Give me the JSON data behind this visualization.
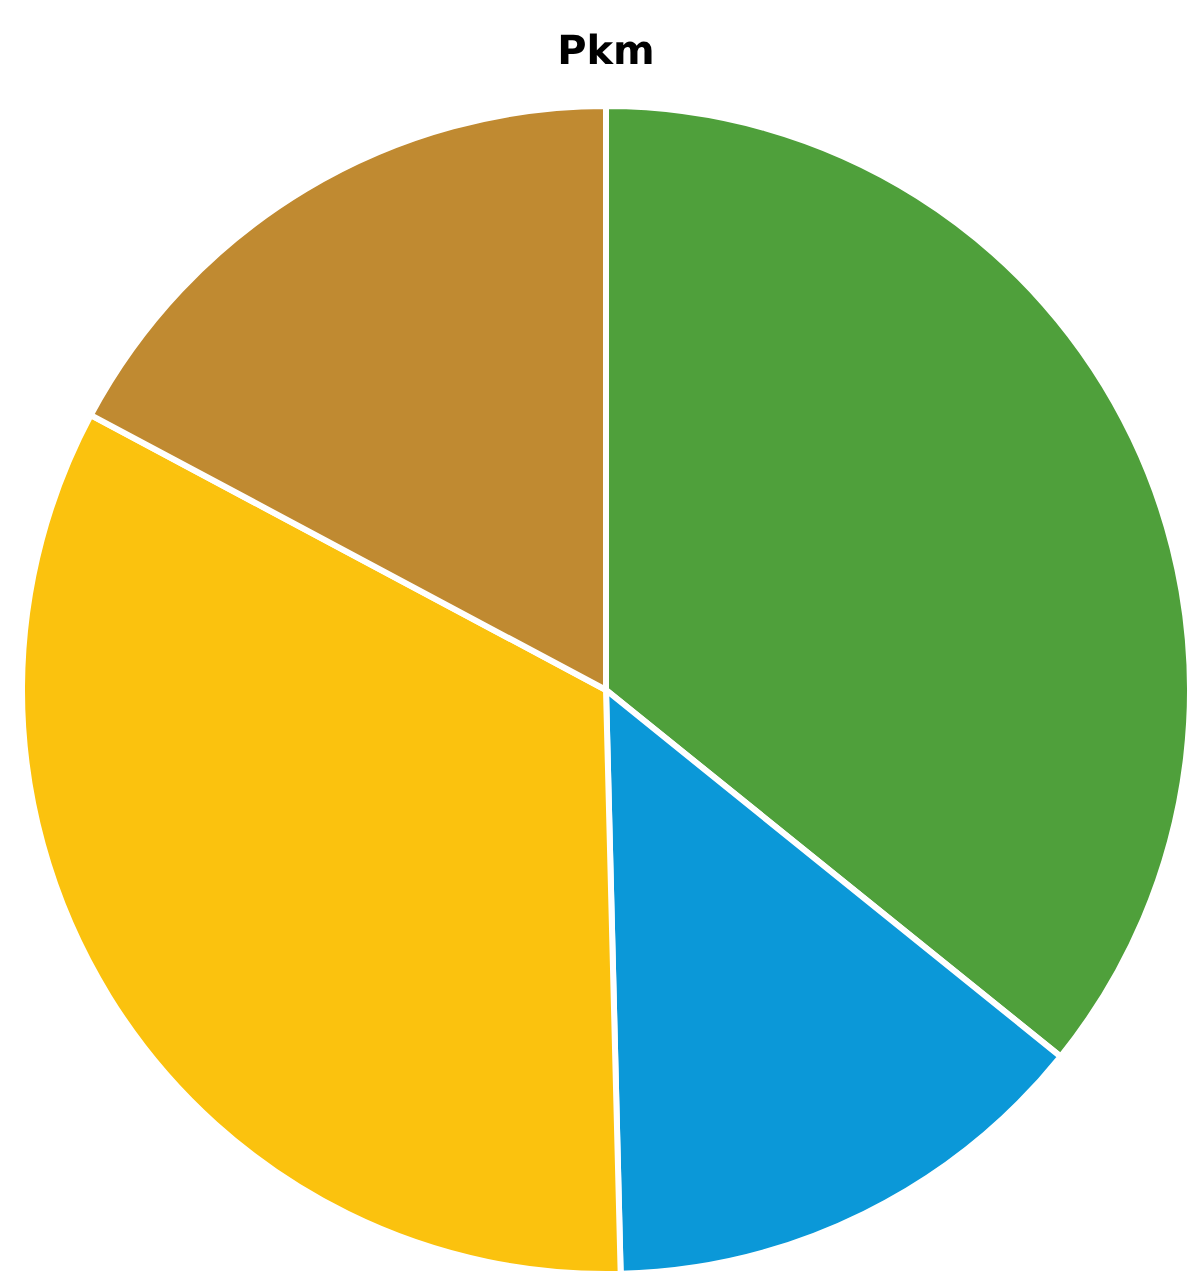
{
  "chart_data": {
    "type": "pie",
    "title": "Pkm",
    "categories": [
      null,
      null,
      null,
      null
    ],
    "values": [
      35.8,
      13.8,
      33.2,
      17.2
    ],
    "colors": [
      "#4fa03b",
      "#0b98d8",
      "#fbc20e",
      "#c08a31"
    ]
  }
}
